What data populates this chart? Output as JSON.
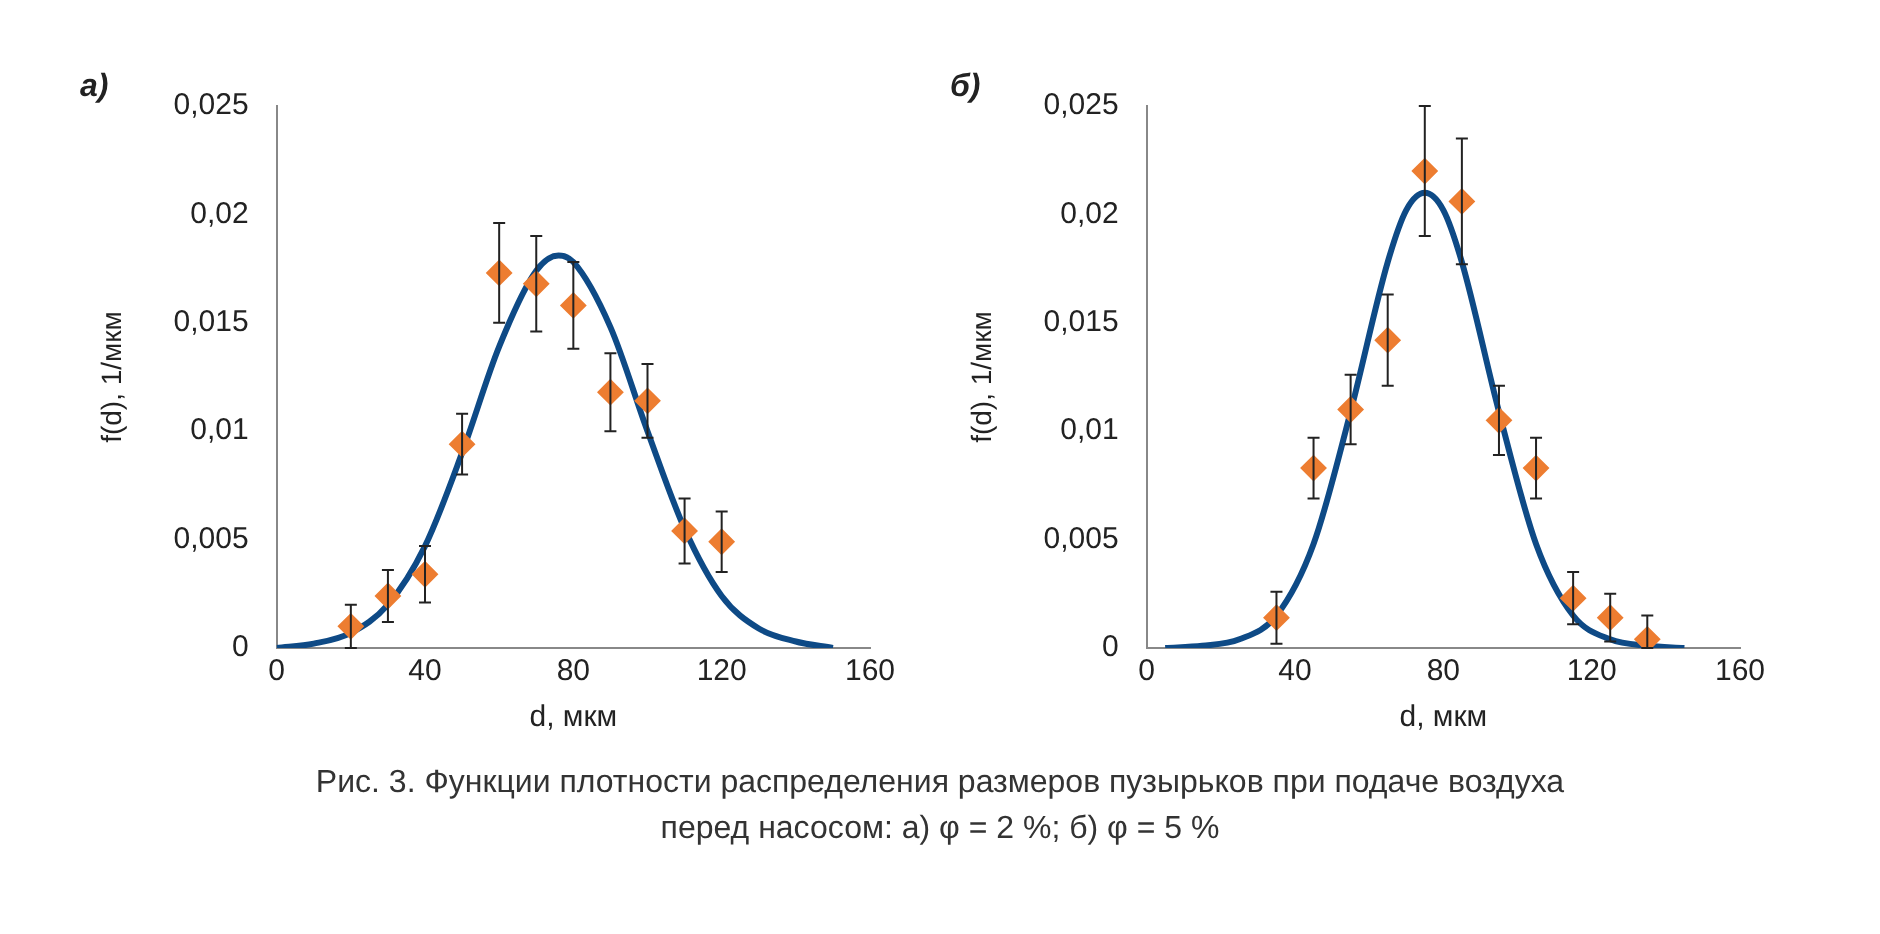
{
  "chart_data": [
    {
      "type": "scatter",
      "title": "а)",
      "xlabel": "d, мкм",
      "ylabel": "f(d), 1/мкм",
      "xlim": [
        0,
        160
      ],
      "xticks": [
        0,
        40,
        80,
        120,
        160
      ],
      "ylim": [
        0,
        0.025
      ],
      "yticks": [
        {
          "value": 0,
          "label": "0"
        },
        {
          "value": 0.005,
          "label": "0,005"
        },
        {
          "value": 0.01,
          "label": "0,01"
        },
        {
          "value": 0.015,
          "label": "0,015"
        },
        {
          "value": 0.02,
          "label": "0,02"
        },
        {
          "value": 0.025,
          "label": "0,025"
        }
      ],
      "grid": false,
      "legend": false,
      "annotations": [
        "Рис. 3. Функции плотности распределения размеров пузырьков при подаче воздуха перед насосом: а) φ = 2 %; б) φ = 5 %"
      ],
      "series": [
        {
          "type": "line",
          "color": "#0e4a86",
          "marker": "none",
          "x": [
            0,
            10,
            20,
            30,
            40,
            50,
            60,
            70,
            76,
            80,
            90,
            100,
            110,
            120,
            130,
            140,
            150
          ],
          "values": [
            0.0,
            0.0002,
            0.0007,
            0.002,
            0.0047,
            0.009,
            0.0139,
            0.0174,
            0.0181,
            0.0178,
            0.0148,
            0.01,
            0.0055,
            0.0024,
            0.0009,
            0.0003,
            0.0
          ]
        },
        {
          "type": "scatter",
          "color": "#ed7d31",
          "marker": "diamond",
          "x": [
            20,
            30,
            40,
            50,
            60,
            70,
            80,
            90,
            100,
            110,
            120
          ],
          "values": [
            0.001,
            0.0024,
            0.0034,
            0.0094,
            0.0173,
            0.0168,
            0.0158,
            0.0118,
            0.0114,
            0.0054,
            0.0049
          ],
          "errors": [
            [
              0,
              0.002
            ],
            0.0012,
            0.0013,
            0.0014,
            0.0023,
            0.0022,
            0.002,
            0.0018,
            0.0017,
            0.0015,
            0.0014
          ]
        }
      ]
    },
    {
      "type": "scatter",
      "title": "б)",
      "xlabel": "d, мкм",
      "ylabel": "f(d), 1/мкм",
      "xlim": [
        0,
        160
      ],
      "xticks": [
        0,
        40,
        80,
        120,
        160
      ],
      "ylim": [
        0,
        0.025
      ],
      "yticks": [
        {
          "value": 0,
          "label": "0"
        },
        {
          "value": 0.005,
          "label": "0,005"
        },
        {
          "value": 0.01,
          "label": "0,01"
        },
        {
          "value": 0.015,
          "label": "0,015"
        },
        {
          "value": 0.02,
          "label": "0,02"
        },
        {
          "value": 0.025,
          "label": "0,025"
        }
      ],
      "grid": false,
      "legend": false,
      "series": [
        {
          "type": "line",
          "color": "#0e4a86",
          "marker": "none",
          "x": [
            5,
            15,
            25,
            35,
            45,
            55,
            65,
            70,
            75,
            80,
            85,
            95,
            105,
            115,
            125,
            135,
            145
          ],
          "values": [
            0.0,
            0.0001,
            0.0004,
            0.0015,
            0.0048,
            0.0109,
            0.0178,
            0.0202,
            0.021,
            0.0202,
            0.0178,
            0.0109,
            0.0048,
            0.0015,
            0.0004,
            0.0001,
            0.0
          ]
        },
        {
          "type": "scatter",
          "color": "#ed7d31",
          "marker": "diamond",
          "x": [
            35,
            45,
            55,
            65,
            75,
            85,
            95,
            105,
            115,
            125,
            135
          ],
          "values": [
            0.0014,
            0.0083,
            0.011,
            0.0142,
            0.022,
            0.0206,
            0.0105,
            0.0083,
            0.0023,
            0.0014,
            0.0004
          ],
          "errors": [
            0.0012,
            0.0014,
            0.0016,
            0.0021,
            0.003,
            0.0029,
            0.0016,
            0.0014,
            0.0012,
            0.0011,
            [
              0,
              0.0015
            ]
          ]
        }
      ]
    }
  ]
}
